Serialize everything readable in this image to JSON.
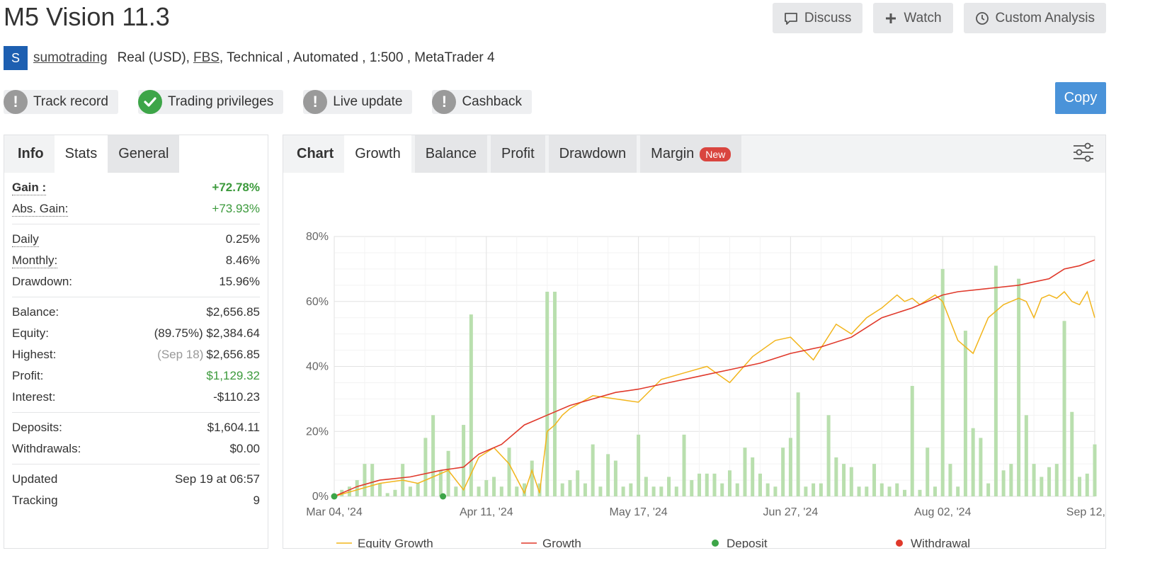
{
  "header": {
    "title": "M5 Vision 11.3",
    "actions": {
      "discuss": "Discuss",
      "watch": "Watch",
      "custom_analysis": "Custom Analysis"
    }
  },
  "account": {
    "avatar_letter": "S",
    "username": "sumotrading",
    "type": "Real (USD),",
    "broker": "FBS",
    "details": ", Technical , Automated , 1:500 , MetaTrader 4"
  },
  "badges": [
    {
      "label": "Track record",
      "status": "unverified",
      "icon": "exclamation-icon"
    },
    {
      "label": "Trading privileges",
      "status": "verified",
      "icon": "check-icon"
    },
    {
      "label": "Live update",
      "status": "unverified",
      "icon": "exclamation-icon"
    },
    {
      "label": "Cashback",
      "status": "unverified",
      "icon": "exclamation-icon"
    }
  ],
  "copy_label": "Copy",
  "left_tabs": {
    "info": "Info",
    "stats": "Stats",
    "general": "General"
  },
  "stats": {
    "gain_label": "Gain :",
    "gain": "+72.78%",
    "abs_gain_label": "Abs. Gain:",
    "abs_gain": "+73.93%",
    "daily_label": "Daily",
    "daily": "0.25%",
    "monthly_label": "Monthly:",
    "monthly": "8.46%",
    "drawdown_label": "Drawdown:",
    "drawdown": "15.96%",
    "balance_label": "Balance:",
    "balance": "$2,656.85",
    "equity_label": "Equity:",
    "equity_pct": "(89.75%)",
    "equity": "$2,384.64",
    "highest_label": "Highest:",
    "highest_date": "(Sep 18)",
    "highest": "$2,656.85",
    "profit_label": "Profit:",
    "profit": "$1,129.32",
    "interest_label": "Interest:",
    "interest": "-$110.23",
    "deposits_label": "Deposits:",
    "deposits": "$1,604.11",
    "withdrawals_label": "Withdrawals:",
    "withdrawals": "$0.00",
    "updated_label": "Updated",
    "updated": "Sep 19 at 06:57",
    "tracking_label": "Tracking",
    "tracking": "9"
  },
  "chart_tabs": {
    "chart": "Chart",
    "growth": "Growth",
    "balance": "Balance",
    "profit": "Profit",
    "drawdown": "Drawdown",
    "margin": "Margin",
    "new_badge": "New"
  },
  "colors": {
    "equity": "#f2b51c",
    "growth": "#e0392b",
    "deposit": "#3da548",
    "withdrawal": "#e0392b",
    "bars": "#b9dfae"
  },
  "chart_data": {
    "type": "line",
    "y_ticks": [
      "0%",
      "20%",
      "40%",
      "60%",
      "80%"
    ],
    "ylim": [
      0,
      80
    ],
    "x_ticks": [
      "Mar 04, '24",
      "Apr 11, '24",
      "May 17, '24",
      "Jun 27, '24",
      "Aug 02, '24",
      "Sep 12, '24"
    ],
    "xlim": [
      0,
      100
    ],
    "legend": [
      "Equity Growth",
      "Growth",
      "Deposit",
      "Withdrawal"
    ],
    "legend_position": "bottom",
    "series": [
      {
        "name": "Growth",
        "x": [
          0,
          3,
          6,
          10,
          14,
          17,
          19,
          22,
          25,
          28,
          31,
          34,
          37,
          40,
          44,
          48,
          52,
          56,
          60,
          64,
          68,
          70,
          72,
          76,
          78,
          80,
          82,
          86,
          90,
          92,
          94,
          96,
          98,
          100
        ],
        "values": [
          0,
          3,
          5,
          6,
          8,
          9,
          13,
          16,
          22,
          25,
          28,
          30,
          32,
          33,
          35,
          37,
          39,
          41,
          44,
          46,
          49,
          52,
          55,
          58,
          60,
          62,
          63,
          64,
          65,
          66,
          67,
          70,
          71,
          72.8
        ]
      },
      {
        "name": "Equity Growth",
        "x": [
          0,
          3,
          6,
          9,
          11,
          13,
          15,
          17,
          19,
          21,
          23,
          25,
          26,
          27,
          28,
          29,
          30,
          31,
          34,
          37,
          40,
          43,
          46,
          49,
          52,
          55,
          58,
          60,
          63,
          66,
          68,
          70,
          72,
          74,
          75,
          76,
          77,
          79,
          80,
          81,
          82,
          84,
          86,
          88,
          90,
          91,
          92,
          93,
          94,
          95,
          96,
          97,
          98,
          99,
          100
        ],
        "values": [
          0,
          2,
          4,
          5,
          4,
          6,
          8,
          2,
          12,
          15,
          10,
          1,
          8,
          1,
          20,
          22,
          25,
          27,
          31,
          30,
          29,
          36,
          38,
          40,
          35,
          43,
          48,
          49,
          42,
          53,
          50,
          55,
          58,
          62,
          60,
          61,
          59,
          62,
          60,
          54,
          48,
          44,
          55,
          59,
          61,
          60,
          55,
          61,
          62,
          61,
          63,
          60,
          59,
          63,
          55
        ]
      }
    ],
    "bars": {
      "description_free": true,
      "x": [
        1,
        2,
        3,
        4,
        5,
        6,
        7,
        8,
        9,
        10,
        11,
        12,
        13,
        14,
        15,
        16,
        17,
        18,
        19,
        20,
        21,
        22,
        23,
        24,
        25,
        26,
        27,
        28,
        29,
        30,
        31,
        32,
        33,
        34,
        35,
        36,
        37,
        38,
        39,
        40,
        41,
        42,
        43,
        44,
        45,
        46,
        47,
        48,
        49,
        50,
        51,
        52,
        53,
        54,
        55,
        56,
        57,
        58,
        59,
        60,
        61,
        62,
        63,
        64,
        65,
        66,
        67,
        68,
        69,
        70,
        71,
        72,
        73,
        74,
        75,
        76,
        77,
        78,
        79,
        80,
        81,
        82,
        83,
        84,
        85,
        86,
        87,
        88,
        89,
        90,
        91,
        92,
        93,
        94,
        95,
        96,
        97,
        98,
        99,
        100
      ],
      "values": [
        2,
        3,
        5,
        10,
        10,
        4,
        1,
        2,
        10,
        3,
        4,
        18,
        25,
        8,
        14,
        3,
        22,
        56,
        3,
        5,
        6,
        3,
        15,
        3,
        4,
        11,
        4,
        63,
        63,
        4,
        5,
        8,
        4,
        16,
        3,
        13,
        11,
        3,
        4,
        19,
        6,
        3,
        3,
        6,
        3,
        19,
        5,
        7,
        7,
        7,
        4,
        8,
        4,
        15,
        12,
        7,
        4,
        3,
        15,
        18,
        32,
        3,
        4,
        4,
        25,
        12,
        10,
        9,
        3,
        3,
        10,
        4,
        3,
        4,
        2,
        34,
        2,
        15,
        3,
        70,
        10,
        3,
        51,
        21,
        18,
        4,
        71,
        8,
        10,
        67,
        25,
        10,
        6,
        9,
        10,
        54,
        26,
        6,
        7,
        16
      ]
    },
    "deposits_x": [
      0,
      14.3
    ]
  }
}
